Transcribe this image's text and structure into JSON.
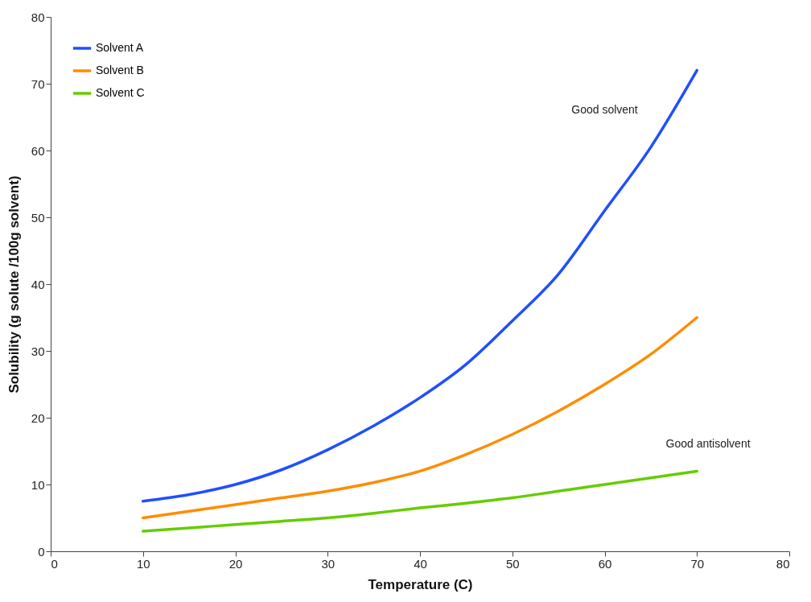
{
  "chart_data": {
    "type": "line",
    "xlabel": "Temperature (C)",
    "ylabel": "Solubility (g solute /100g solvent)",
    "x": [
      10,
      15,
      20,
      25,
      30,
      35,
      40,
      45,
      50,
      55,
      60,
      65,
      70
    ],
    "series": [
      {
        "name": "Solvent A",
        "color": "#1f4fff",
        "values": [
          7.5,
          8.5,
          10,
          12.2,
          15.2,
          18.8,
          23,
          28,
          34.5,
          41.5,
          51,
          60.5,
          72
        ]
      },
      {
        "name": "Solvent B",
        "color": "#ff8c00",
        "values": [
          5,
          6,
          7,
          8,
          9,
          10.3,
          12,
          14.5,
          17.5,
          21,
          25,
          29.5,
          35
        ]
      },
      {
        "name": "Solvent C",
        "color": "#66cc00",
        "values": [
          3,
          3.5,
          4,
          4.5,
          5,
          5.7,
          6.5,
          7.2,
          8,
          9,
          10,
          11,
          12
        ]
      }
    ],
    "annotations": [
      "Good solvent",
      "Good antisolvent"
    ],
    "xlim": [
      0,
      80
    ],
    "xticks": [
      0,
      10,
      20,
      30,
      40,
      50,
      60,
      70,
      80
    ],
    "ylim": [
      0,
      80
    ],
    "yticks": [
      0,
      10,
      20,
      30,
      40,
      50,
      60,
      70,
      80
    ],
    "grid": false,
    "legend": "top left",
    "marker": "none",
    "line_style": "solid"
  }
}
